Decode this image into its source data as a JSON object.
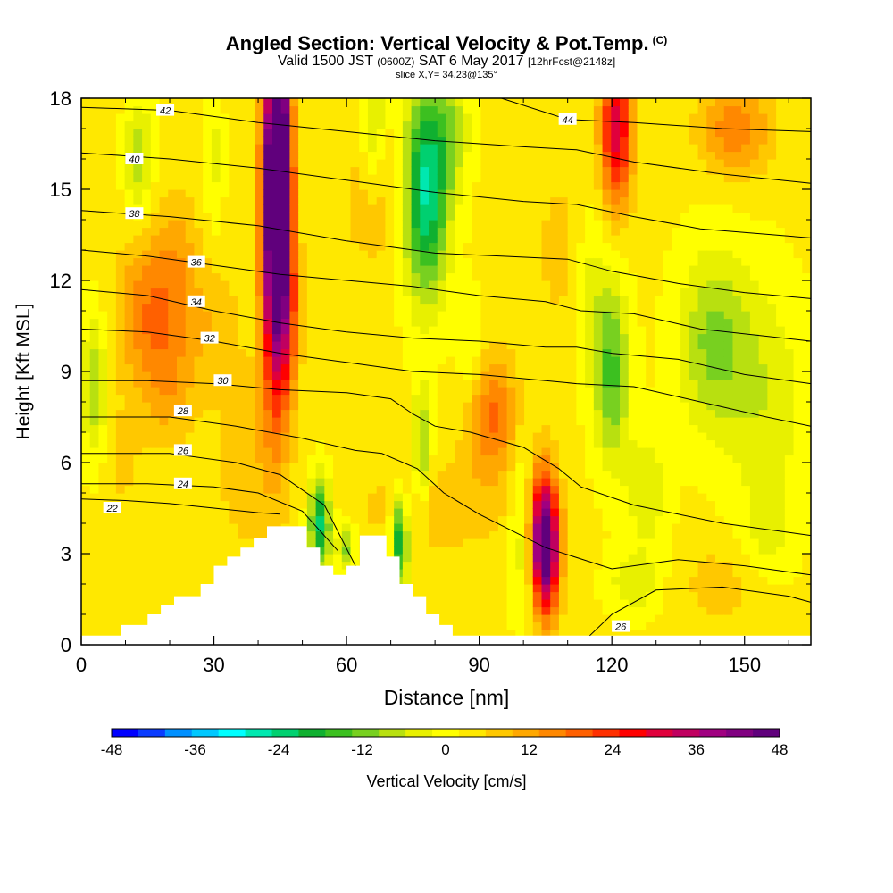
{
  "header": {
    "title": "Angled Section: Vertical Velocity & Pot.Temp.",
    "title_unit": "(C)",
    "subtitle_main": "Valid 1500 JST",
    "subtitle_zulu": "(0600Z)",
    "subtitle_date": "SAT 6 May 2017",
    "subtitle_fcst": "[12hrFcst@2148z]",
    "slice": "slice X,Y= 34,23@135°"
  },
  "chart_data": {
    "type": "heatmap",
    "xlabel": "Distance [nm]",
    "ylabel": "Height [Kft MSL]",
    "xlim": [
      0,
      165
    ],
    "ylim": [
      0,
      18
    ],
    "x_ticks": [
      0,
      30,
      60,
      90,
      120,
      150
    ],
    "y_ticks": [
      0,
      3,
      6,
      9,
      12,
      15,
      18
    ],
    "colorbar": {
      "label": "Vertical Velocity [cm/s]",
      "ticks": [
        -48,
        -36,
        -24,
        -12,
        0,
        12,
        24,
        36,
        48
      ],
      "colors": [
        "#0000ff",
        "#0a3cff",
        "#0090ff",
        "#00c8ff",
        "#00ffff",
        "#00e8b0",
        "#00d070",
        "#10b030",
        "#3cc020",
        "#78d020",
        "#b8e010",
        "#e8f000",
        "#ffff00",
        "#ffe800",
        "#ffc800",
        "#ffa800",
        "#ff8800",
        "#ff6000",
        "#ff3000",
        "#ff0000",
        "#e0003c",
        "#c00060",
        "#a00080",
        "#800080",
        "#60007c"
      ]
    },
    "terrain": [
      [
        0,
        0.3
      ],
      [
        9,
        0.3
      ],
      [
        9,
        0.65
      ],
      [
        15,
        0.65
      ],
      [
        15,
        1.0
      ],
      [
        18,
        1.0
      ],
      [
        18,
        1.3
      ],
      [
        21,
        1.3
      ],
      [
        21,
        1.6
      ],
      [
        27,
        1.6
      ],
      [
        27,
        2.0
      ],
      [
        30,
        2.0
      ],
      [
        30,
        2.6
      ],
      [
        33,
        2.6
      ],
      [
        33,
        2.9
      ],
      [
        36,
        2.9
      ],
      [
        36,
        3.2
      ],
      [
        39,
        3.2
      ],
      [
        39,
        3.5
      ],
      [
        42,
        3.5
      ],
      [
        42,
        3.9
      ],
      [
        51,
        3.9
      ],
      [
        51,
        3.2
      ],
      [
        54,
        3.2
      ],
      [
        54,
        2.6
      ],
      [
        57,
        2.6
      ],
      [
        57,
        2.3
      ],
      [
        60,
        2.3
      ],
      [
        60,
        2.6
      ],
      [
        63,
        2.6
      ],
      [
        63,
        3.6
      ],
      [
        69,
        3.6
      ],
      [
        69,
        2.9
      ],
      [
        72,
        2.9
      ],
      [
        72,
        2.0
      ],
      [
        75,
        2.0
      ],
      [
        75,
        1.6
      ],
      [
        78,
        1.6
      ],
      [
        78,
        1.0
      ],
      [
        81,
        1.0
      ],
      [
        81,
        0.65
      ],
      [
        84,
        0.65
      ],
      [
        84,
        0.3
      ],
      [
        165,
        0.3
      ]
    ],
    "blobs": [
      [
        44,
        14,
        3,
        5.5,
        60
      ],
      [
        45,
        16.5,
        2.5,
        2.5,
        30
      ],
      [
        47,
        11,
        2.5,
        3,
        15
      ],
      [
        15,
        11,
        7,
        2.5,
        14
      ],
      [
        22,
        12.5,
        5,
        2.5,
        8
      ],
      [
        20,
        8.5,
        6,
        2,
        8
      ],
      [
        30,
        10.5,
        6,
        2,
        6
      ],
      [
        105,
        3,
        3,
        2,
        45
      ],
      [
        104,
        4.5,
        3.5,
        2,
        15
      ],
      [
        93,
        7.5,
        6,
        2,
        16
      ],
      [
        121,
        17,
        3.5,
        2.5,
        30
      ],
      [
        148,
        17,
        8,
        1.5,
        14
      ],
      [
        80,
        4.5,
        18,
        1.5,
        6
      ],
      [
        145,
        2,
        10,
        1.5,
        5
      ],
      [
        38,
        6,
        8,
        3,
        6
      ],
      [
        66,
        15,
        6,
        2.5,
        8
      ],
      [
        110,
        13,
        8,
        3,
        5
      ],
      [
        9,
        6,
        5,
        2,
        4
      ],
      [
        78,
        15,
        5,
        3.5,
        -30
      ],
      [
        84,
        17,
        4,
        2,
        -10
      ],
      [
        66,
        17,
        3,
        2.5,
        -12
      ],
      [
        54,
        4,
        2.5,
        1.5,
        -26
      ],
      [
        60,
        3.2,
        2,
        0.8,
        -14
      ],
      [
        72,
        3.5,
        2,
        1.5,
        -26
      ],
      [
        77,
        6.5,
        2,
        2,
        -15
      ],
      [
        120,
        9,
        4,
        3,
        -18
      ],
      [
        115,
        12,
        4,
        3,
        -8
      ],
      [
        13,
        16,
        3,
        2,
        -12
      ],
      [
        143,
        10,
        8,
        3,
        -14
      ],
      [
        155,
        8,
        9,
        4,
        -8
      ],
      [
        128,
        5,
        5,
        2,
        -8
      ],
      [
        3,
        8.5,
        3,
        2.5,
        -12
      ],
      [
        30,
        16,
        2,
        2.5,
        -6
      ],
      [
        100,
        4,
        3,
        3,
        -10
      ],
      [
        125,
        2,
        6,
        1,
        -8
      ],
      [
        155,
        3.5,
        6,
        1.5,
        -5
      ],
      [
        88,
        9.5,
        3,
        2,
        -6
      ]
    ],
    "contours": [
      {
        "label": "22",
        "label_at": [
          7,
          4.5
        ],
        "pts": [
          [
            0,
            4.8
          ],
          [
            10,
            4.75
          ],
          [
            20,
            4.65
          ],
          [
            30,
            4.5
          ],
          [
            40,
            4.35
          ],
          [
            45,
            4.3
          ]
        ]
      },
      {
        "label": "24",
        "label_at": [
          23,
          5.3
        ],
        "pts": [
          [
            0,
            5.3
          ],
          [
            15,
            5.3
          ],
          [
            30,
            5.2
          ],
          [
            40,
            5.0
          ],
          [
            50,
            4.4
          ],
          [
            58,
            3.1
          ]
        ]
      },
      {
        "label": "26",
        "label_at": [
          23,
          6.4
        ],
        "pts": [
          [
            0,
            6.3
          ],
          [
            20,
            6.3
          ],
          [
            35,
            6.0
          ],
          [
            45,
            5.6
          ],
          [
            55,
            4.6
          ],
          [
            62,
            2.6
          ]
        ]
      },
      {
        "label": "26",
        "label_at": [
          122,
          0.6
        ],
        "pts": [
          [
            115,
            0.3
          ],
          [
            120,
            1.0
          ],
          [
            130,
            1.8
          ],
          [
            145,
            1.9
          ],
          [
            160,
            1.6
          ],
          [
            165,
            1.4
          ]
        ]
      },
      {
        "label": "28",
        "label_at": [
          23,
          7.7
        ],
        "pts": [
          [
            0,
            7.5
          ],
          [
            20,
            7.5
          ],
          [
            35,
            7.2
          ],
          [
            50,
            6.8
          ],
          [
            62,
            6.4
          ],
          [
            68,
            6.3
          ],
          [
            76,
            5.8
          ],
          [
            82,
            5.0
          ],
          [
            90,
            4.3
          ],
          [
            105,
            3.2
          ],
          [
            120,
            2.5
          ],
          [
            135,
            2.8
          ],
          [
            150,
            2.6
          ],
          [
            165,
            2.3
          ]
        ]
      },
      {
        "label": "30",
        "label_at": [
          32,
          8.7
        ],
        "pts": [
          [
            0,
            8.7
          ],
          [
            15,
            8.7
          ],
          [
            30,
            8.6
          ],
          [
            45,
            8.4
          ],
          [
            60,
            8.3
          ],
          [
            70,
            8.1
          ],
          [
            75,
            7.6
          ],
          [
            80,
            7.2
          ],
          [
            88,
            7.0
          ],
          [
            100,
            6.5
          ],
          [
            108,
            5.8
          ],
          [
            113,
            5.2
          ],
          [
            125,
            4.6
          ],
          [
            145,
            4.0
          ],
          [
            165,
            3.6
          ]
        ]
      },
      {
        "label": "32",
        "label_at": [
          29,
          10.1
        ],
        "pts": [
          [
            0,
            10.4
          ],
          [
            15,
            10.3
          ],
          [
            30,
            10.0
          ],
          [
            45,
            9.6
          ],
          [
            60,
            9.3
          ],
          [
            75,
            9.0
          ],
          [
            90,
            8.9
          ],
          [
            105,
            8.7
          ],
          [
            112,
            8.6
          ],
          [
            125,
            8.5
          ],
          [
            140,
            8.0
          ],
          [
            155,
            7.5
          ],
          [
            165,
            7.2
          ]
        ]
      },
      {
        "label": "34",
        "label_at": [
          26,
          11.3
        ],
        "pts": [
          [
            0,
            11.7
          ],
          [
            15,
            11.5
          ],
          [
            30,
            11.0
          ],
          [
            45,
            10.6
          ],
          [
            60,
            10.3
          ],
          [
            75,
            10.1
          ],
          [
            90,
            10.0
          ],
          [
            105,
            9.8
          ],
          [
            112,
            9.8
          ],
          [
            120,
            9.6
          ],
          [
            135,
            9.4
          ],
          [
            150,
            8.9
          ],
          [
            165,
            8.6
          ]
        ]
      },
      {
        "label": "36",
        "label_at": [
          26,
          12.6
        ],
        "pts": [
          [
            0,
            13.0
          ],
          [
            15,
            12.8
          ],
          [
            30,
            12.5
          ],
          [
            45,
            12.2
          ],
          [
            60,
            12.0
          ],
          [
            75,
            11.8
          ],
          [
            90,
            11.5
          ],
          [
            105,
            11.3
          ],
          [
            113,
            11.0
          ],
          [
            125,
            10.9
          ],
          [
            140,
            10.4
          ],
          [
            165,
            10.0
          ]
        ]
      },
      {
        "label": "38",
        "label_at": [
          12,
          14.2
        ],
        "pts": [
          [
            0,
            14.3
          ],
          [
            20,
            14.1
          ],
          [
            40,
            13.8
          ],
          [
            60,
            13.3
          ],
          [
            80,
            12.9
          ],
          [
            95,
            12.8
          ],
          [
            110,
            12.7
          ],
          [
            120,
            12.3
          ],
          [
            135,
            11.9
          ],
          [
            150,
            11.6
          ],
          [
            165,
            11.4
          ]
        ]
      },
      {
        "label": "40",
        "label_at": [
          12,
          16.0
        ],
        "pts": [
          [
            0,
            16.2
          ],
          [
            20,
            16.0
          ],
          [
            40,
            15.7
          ],
          [
            60,
            15.3
          ],
          [
            80,
            14.9
          ],
          [
            100,
            14.6
          ],
          [
            112,
            14.5
          ],
          [
            125,
            14.1
          ],
          [
            140,
            13.7
          ],
          [
            165,
            13.4
          ]
        ]
      },
      {
        "label": "42",
        "label_at": [
          19,
          17.6
        ],
        "pts": [
          [
            0,
            17.7
          ],
          [
            20,
            17.6
          ],
          [
            40,
            17.2
          ],
          [
            60,
            16.9
          ],
          [
            80,
            16.6
          ],
          [
            100,
            16.4
          ],
          [
            112,
            16.3
          ],
          [
            125,
            15.9
          ],
          [
            145,
            15.5
          ],
          [
            165,
            15.2
          ]
        ]
      },
      {
        "label": "44",
        "label_at": [
          110,
          17.3
        ],
        "pts": [
          [
            95,
            18
          ],
          [
            110,
            17.3
          ],
          [
            125,
            17.2
          ],
          [
            145,
            17.0
          ],
          [
            165,
            16.9
          ]
        ]
      }
    ]
  }
}
